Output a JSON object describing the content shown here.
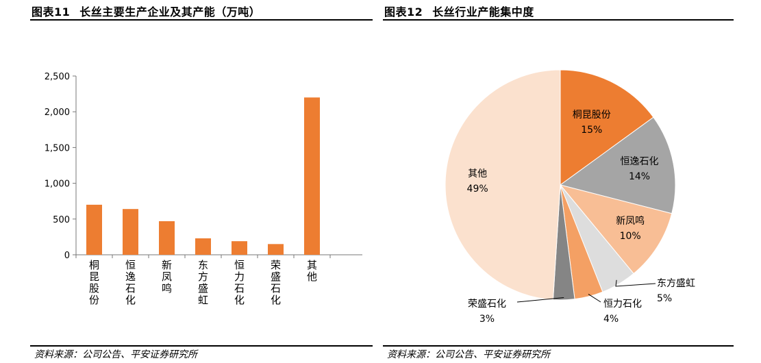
{
  "charts": [
    {
      "title_prefix": "图表11",
      "title": "长丝主要生产企业及其产能（万吨）",
      "source": "资料来源：公司公告、平安证券研究所"
    },
    {
      "title_prefix": "图表12",
      "title": "长丝行业产能集中度",
      "source": "资料来源：公司公告、平安证券研究所"
    }
  ],
  "colors": {
    "bar": "#ED7D31"
  },
  "chart_data": [
    {
      "type": "bar",
      "title": "长丝主要生产企业及其产能（万吨）",
      "categories": [
        "桐昆股份",
        "恒逸石化",
        "新凤鸣",
        "东方盛虹",
        "恒力石化",
        "荣盛石化",
        "其他"
      ],
      "values": [
        700,
        640,
        470,
        230,
        190,
        150,
        2200
      ],
      "ylim": [
        0,
        2500
      ],
      "yticks": [
        0,
        500,
        1000,
        1500,
        2000,
        2500
      ],
      "ytick_labels": [
        "0",
        "500",
        "1,000",
        "1,500",
        "2,000",
        "2,500"
      ],
      "xlabel": "",
      "ylabel": "",
      "grid": false,
      "legend": "none"
    },
    {
      "type": "pie",
      "title": "长丝行业产能集中度",
      "slices": [
        {
          "label": "桐昆股份",
          "pct_label": "15%",
          "value": 15,
          "color": "#ED7D31"
        },
        {
          "label": "恒逸石化",
          "pct_label": "14%",
          "value": 14,
          "color": "#A5A5A5"
        },
        {
          "label": "新凤鸣",
          "pct_label": "10%",
          "value": 10,
          "color": "#F8BE95"
        },
        {
          "label": "东方盛虹",
          "pct_label": "5%",
          "value": 5,
          "color": "#DDDDDD"
        },
        {
          "label": "恒力石化",
          "pct_label": "4%",
          "value": 4,
          "color": "#F4A064"
        },
        {
          "label": "荣盛石化",
          "pct_label": "3%",
          "value": 3,
          "color": "#858585"
        },
        {
          "label": "其他",
          "pct_label": "49%",
          "value": 49,
          "color": "#FBE1CE"
        }
      ],
      "legend": "none"
    }
  ]
}
